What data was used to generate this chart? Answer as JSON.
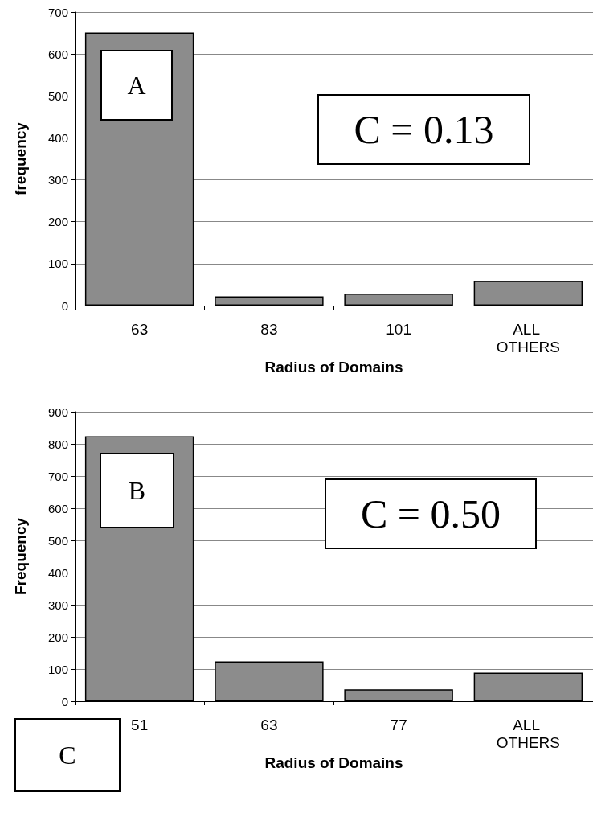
{
  "chart_data": [
    {
      "type": "bar",
      "xlabel": "Radius of Domains",
      "ylabel": "frequency",
      "categories": [
        "63",
        "83",
        "101",
        "ALL OTHERS"
      ],
      "values": [
        651,
        22,
        29,
        59
      ],
      "color": "#8c8c8c",
      "ylim": [
        0,
        700
      ],
      "yticks": [
        0,
        100,
        200,
        300,
        400,
        500,
        600,
        700
      ],
      "grid": "y",
      "annotations": [
        "A",
        "C = 0.13"
      ]
    },
    {
      "type": "bar",
      "xlabel": "Radius of Domains",
      "ylabel": "Frequency",
      "categories": [
        "51",
        "63",
        "77",
        "ALL OTHERS"
      ],
      "values": [
        824,
        124,
        37,
        89
      ],
      "color": "#8c8c8c",
      "ylim": [
        0,
        900
      ],
      "yticks": [
        0,
        100,
        200,
        300,
        400,
        500,
        600,
        700,
        800,
        900
      ],
      "grid": "y",
      "annotations": [
        "B",
        "C = 0.50",
        "C"
      ]
    }
  ]
}
